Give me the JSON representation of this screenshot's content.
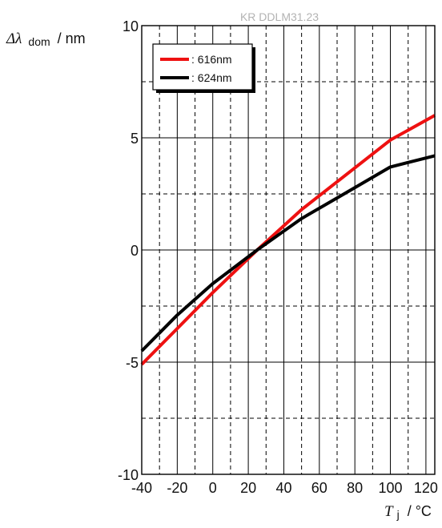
{
  "chart_data": {
    "type": "line",
    "watermark": "KR DDLM31.23",
    "ylabel": {
      "symbol": "Δλ",
      "subscript": "dom",
      "unit": "/ nm"
    },
    "xlabel": {
      "symbol": "T",
      "subscript": "j",
      "unit": "/ °C"
    },
    "xlim": [
      -40,
      125
    ],
    "ylim": [
      -10,
      10
    ],
    "x_ticks": [
      -40,
      -20,
      0,
      20,
      40,
      60,
      80,
      100,
      120
    ],
    "y_ticks": [
      -10,
      -5,
      0,
      5,
      10
    ],
    "grid": true,
    "legend_position": "top-left",
    "series": [
      {
        "name": ": 616nm",
        "color": "#ee1111",
        "x": [
          -40,
          -20,
          0,
          25,
          50,
          75,
          100,
          125
        ],
        "y": [
          -5.1,
          -3.5,
          -1.9,
          0.0,
          1.8,
          3.35,
          4.9,
          6.0
        ]
      },
      {
        "name": ": 624nm",
        "color": "#000000",
        "x": [
          -40,
          -20,
          0,
          25,
          50,
          75,
          100,
          125
        ],
        "y": [
          -4.5,
          -2.9,
          -1.5,
          0.0,
          1.4,
          2.55,
          3.7,
          4.2
        ]
      }
    ]
  }
}
